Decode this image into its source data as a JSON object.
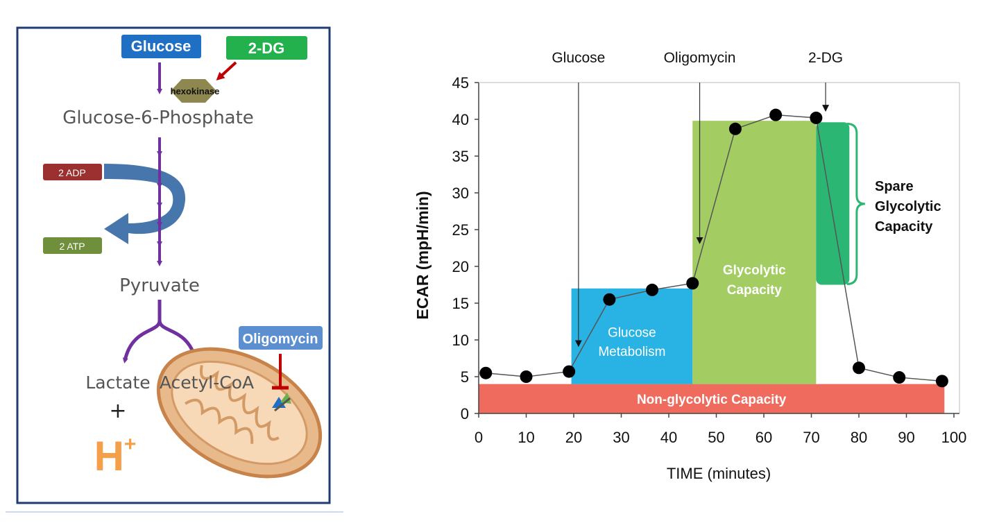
{
  "pathway": {
    "glucose_box": "Glucose",
    "dg_box": "2-DG",
    "hexokinase": "hexokinase",
    "g6p": "Glucose-6-Phosphate",
    "adp": "2 ADP",
    "atp": "2 ATP",
    "pyruvate": "Pyruvate",
    "lactate": "Lactate",
    "plus": "+",
    "h": "H",
    "h_sup": "+",
    "acetyl": "Acetyl-CoA",
    "oligomycin_box": "Oligomycin",
    "colors": {
      "glucose_box": "#1f6fc4",
      "dg_box": "#22b14c",
      "adp": "#9c2f2f",
      "atp": "#6f8f3a",
      "arrow_purple": "#7030a0",
      "oligomycin_box": "#5b8fd0",
      "h_plus": "#f4a04a"
    }
  },
  "chart_data": {
    "type": "scatter",
    "xlabel": "TIME (minutes)",
    "ylabel": "ECAR (mpH/min)",
    "xlim": [
      0,
      100
    ],
    "ylim": [
      0,
      45
    ],
    "xticks": [
      0,
      10,
      20,
      30,
      40,
      50,
      60,
      70,
      80,
      90,
      100
    ],
    "yticks": [
      0,
      5,
      10,
      15,
      20,
      25,
      30,
      35,
      40,
      45
    ],
    "grid": false,
    "points": [
      {
        "x": 1.5,
        "y": 5.5
      },
      {
        "x": 10,
        "y": 5.0
      },
      {
        "x": 19,
        "y": 5.7
      },
      {
        "x": 27.5,
        "y": 15.5
      },
      {
        "x": 36.5,
        "y": 16.8
      },
      {
        "x": 45,
        "y": 17.7
      },
      {
        "x": 54,
        "y": 38.7
      },
      {
        "x": 62.5,
        "y": 40.6
      },
      {
        "x": 71,
        "y": 40.2
      },
      {
        "x": 80,
        "y": 6.2
      },
      {
        "x": 88.5,
        "y": 4.9
      },
      {
        "x": 97.5,
        "y": 4.4
      }
    ],
    "regions": [
      {
        "label": "Non-glycolytic Capacity",
        "x0": 0,
        "x1": 98,
        "y0": 0,
        "y1": 4,
        "color": "#ef6b5e"
      },
      {
        "label": "Glucose Metabolism",
        "x0": 19.5,
        "x1": 45,
        "y0": 4,
        "y1": 17,
        "color": "#29b3e4"
      },
      {
        "label": "Glycolytic Capacity",
        "x0": 45,
        "x1": 71,
        "y0": 4,
        "y1": 39.8,
        "color": "#a3cd63"
      },
      {
        "label": "Spare Glycolytic Capacity",
        "x0": 71,
        "x1": 78,
        "y0": 17.5,
        "y1": 39.6,
        "color": "#2bb673"
      }
    ],
    "injections": [
      {
        "label": "Glucose",
        "x": 21
      },
      {
        "label": "Oligomycin",
        "x": 46.5
      },
      {
        "label": "2-DG",
        "x": 73
      }
    ],
    "spare_label": [
      "Spare",
      "Glycolytic",
      "Capacity"
    ]
  }
}
